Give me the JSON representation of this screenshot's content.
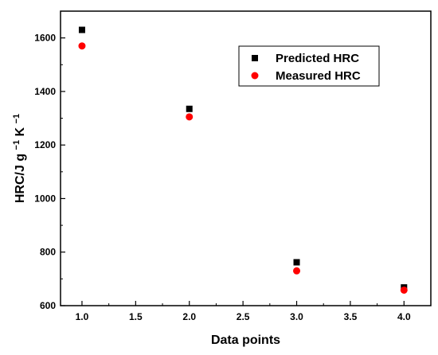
{
  "chart_data": {
    "type": "scatter",
    "title": "",
    "xlabel": "Data points",
    "ylabel_main": "HRC/J g",
    "ylabel_exp": "−1",
    "ylabel_unit": "K",
    "ylabel_exp2": "−1",
    "xlim": [
      0.8,
      4.25
    ],
    "ylim": [
      600,
      1700
    ],
    "x_ticks": [
      "1.0",
      "1.5",
      "2.0",
      "2.5",
      "3.0",
      "3.5",
      "4.0"
    ],
    "y_ticks": [
      "600",
      "800",
      "1000",
      "1200",
      "1400",
      "1600"
    ],
    "grid": false,
    "legend_position": "top-right",
    "series": [
      {
        "name": "Predicted HRC",
        "marker": "square",
        "color": "#000000",
        "x": [
          1.0,
          2.0,
          3.0,
          4.0
        ],
        "y": [
          1630,
          1335,
          762,
          668
        ]
      },
      {
        "name": "Measured HRC",
        "marker": "circle",
        "color": "#ff0000",
        "x": [
          1.0,
          2.0,
          3.0,
          4.0
        ],
        "y": [
          1570,
          1305,
          730,
          658
        ]
      }
    ]
  }
}
